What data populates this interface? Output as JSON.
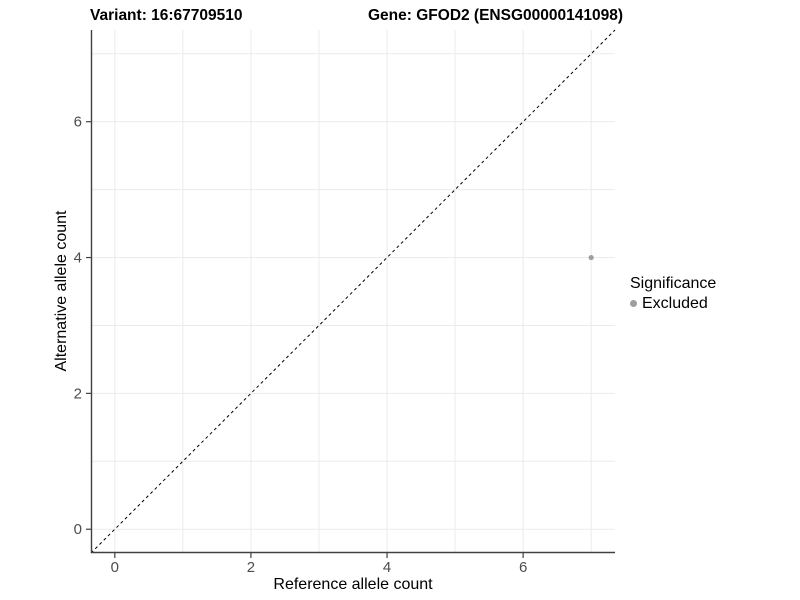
{
  "titles": {
    "left": "Variant: 16:67709510",
    "right": "Gene: GFOD2 (ENSG00000141098)"
  },
  "axes": {
    "x": {
      "label": "Reference allele count",
      "ticks": [
        0,
        2,
        4,
        6
      ]
    },
    "y": {
      "label": "Alternative allele count",
      "ticks": [
        0,
        2,
        4,
        6
      ]
    }
  },
  "legend": {
    "title": "Significance",
    "items": [
      {
        "label": "Excluded",
        "color": "#9e9e9e"
      }
    ]
  },
  "chart_data": {
    "type": "scatter",
    "title": "Variant: 16:67709510 | Gene: GFOD2 (ENSG00000141098)",
    "xlabel": "Reference allele count",
    "ylabel": "Alternative allele count",
    "xlim": [
      -0.35,
      7.35
    ],
    "ylim": [
      -0.35,
      7.35
    ],
    "x_ticks": [
      0,
      2,
      4,
      6
    ],
    "y_ticks": [
      0,
      2,
      4,
      6
    ],
    "gridline_step": 1,
    "grid": "on",
    "legend_position": "right",
    "series": [
      {
        "name": "Excluded",
        "color": "#9e9e9e",
        "points": [
          {
            "x": 7,
            "y": 4
          }
        ],
        "point_radius": 2.6
      }
    ],
    "reference_line": {
      "type": "identity",
      "slope": 1,
      "intercept": 0,
      "style": "dashed",
      "color": "#000000"
    },
    "style": {
      "gridline_color": "#ebebeb",
      "axis_line_color": "#404040",
      "tick_color": "#404040",
      "tick_label_color": "#4d4d4d",
      "tick_label_size": 15,
      "tick_length": 5
    }
  }
}
